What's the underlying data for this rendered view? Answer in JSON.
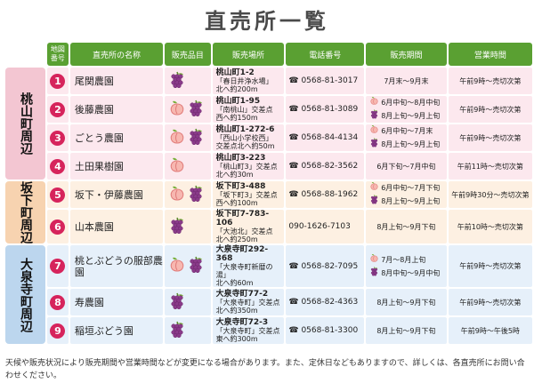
{
  "title": "直売所一覧",
  "headers": {
    "num": "地図番号",
    "name": "直売所の名称",
    "product": "販売品目",
    "place": "販売場所",
    "tel": "電話番号",
    "period": "販売期間",
    "hours": "営業時間"
  },
  "areas": {
    "a1": "桃山町周辺",
    "a2": "坂下町周辺",
    "a3": "大泉寺町周辺"
  },
  "colors": {
    "header": "#5aa032",
    "number": "#d6245c",
    "area1": "#f3c6d2",
    "area2": "#f7d3b0",
    "area3": "#bcd6ee"
  },
  "rows": [
    {
      "no": "1",
      "name": "尾関農園",
      "products": [
        "grape"
      ],
      "place": {
        "addr": "桃山町1-2",
        "near": "「春日井浄水場」",
        "dist": "北へ約200m"
      },
      "tel": "☎ 0568-81-3017",
      "period": [
        {
          "icon": "",
          "text": "7月末〜9月末"
        }
      ],
      "hours": "午前9時〜売切次第"
    },
    {
      "no": "2",
      "name": "後藤農園",
      "products": [
        "peach",
        "grape"
      ],
      "place": {
        "addr": "桃山町1-95",
        "near": "「南桃山」交差点",
        "dist": "西へ約150m"
      },
      "tel": "☎ 0568-81-3089",
      "period": [
        {
          "icon": "peach",
          "text": "6月中旬〜8月中旬"
        },
        {
          "icon": "grape",
          "text": "8月上旬〜9月上旬"
        }
      ],
      "hours": "午前9時〜売切次第"
    },
    {
      "no": "3",
      "name": "ごとう農園",
      "products": [
        "peach",
        "grape"
      ],
      "place": {
        "addr": "桃山町1-272-6",
        "near": "「西山小学校西」",
        "dist": "交差点北へ約50m"
      },
      "tel": "☎ 0568-84-4134",
      "period": [
        {
          "icon": "peach",
          "text": "6月中旬〜7月末"
        },
        {
          "icon": "grape",
          "text": "8月上旬〜9月上旬"
        }
      ],
      "hours": "午前9時〜売切次第"
    },
    {
      "no": "4",
      "name": "土田果樹園",
      "products": [
        "peach"
      ],
      "place": {
        "addr": "桃山町3-223",
        "near": "「桃山町3」交差点",
        "dist": "北へ約30m"
      },
      "tel": "☎ 0568-82-3562",
      "period": [
        {
          "icon": "",
          "text": "6月下旬〜7月中旬"
        }
      ],
      "hours": "午前11時〜売切次第"
    },
    {
      "no": "5",
      "name": "坂下・伊藤農園",
      "products": [
        "peach",
        "grape"
      ],
      "place": {
        "addr": "坂下町3-488",
        "near": "「坂下町3」交差点",
        "dist": "西へ約100m"
      },
      "tel": "☎ 0568-88-1962",
      "period": [
        {
          "icon": "peach",
          "text": "6月中旬〜7月下旬"
        },
        {
          "icon": "grape",
          "text": "8月上旬〜9月上旬"
        }
      ],
      "hours": "午前9時30分〜売切次第"
    },
    {
      "no": "6",
      "name": "山本農園",
      "products": [
        "grape"
      ],
      "place": {
        "addr": "坂下町7-783-106",
        "near": "「大池北」交差点",
        "dist": "北へ約250m"
      },
      "tel": "090-1626-7103",
      "period": [
        {
          "icon": "",
          "text": "8月上旬〜9月下旬"
        }
      ],
      "hours": "午前10時〜売切次第"
    },
    {
      "no": "7",
      "name": "桃とぶどうの服部農園",
      "products": [
        "peach",
        "grape"
      ],
      "place": {
        "addr": "大泉寺町292-368",
        "near": "「大泉寺町新暦の湯」",
        "dist": "北へ約60m"
      },
      "tel": "☎ 0568-82-7095",
      "period": [
        {
          "icon": "peach",
          "text": "7月〜8月上旬"
        },
        {
          "icon": "grape",
          "text": "8月中旬〜9月中旬"
        }
      ],
      "hours": "午前9時〜売切次第"
    },
    {
      "no": "8",
      "name": "寿農園",
      "products": [
        "grape"
      ],
      "place": {
        "addr": "大泉寺町77-2",
        "near": "「大泉寺町」交差点",
        "dist": "北へ約350m"
      },
      "tel": "☎ 0568-82-4363",
      "period": [
        {
          "icon": "",
          "text": "8月上旬〜9月下旬"
        }
      ],
      "hours": "午前9時〜売切次第"
    },
    {
      "no": "9",
      "name": "稲垣ぶどう園",
      "products": [
        "grape"
      ],
      "place": {
        "addr": "大泉寺町72-3",
        "near": "「大泉寺町」交差点",
        "dist": "東へ約300m"
      },
      "tel": "☎ 0568-81-3300",
      "period": [
        {
          "icon": "",
          "text": "8月上旬〜9月下旬"
        }
      ],
      "hours": "午前9時〜午後5時"
    }
  ],
  "note": "天候や販売状況により販売期間や営業時間などが変更になる場合があります。また、定休日などもありますので、詳しくは、各直売所にお問い合わせください。"
}
